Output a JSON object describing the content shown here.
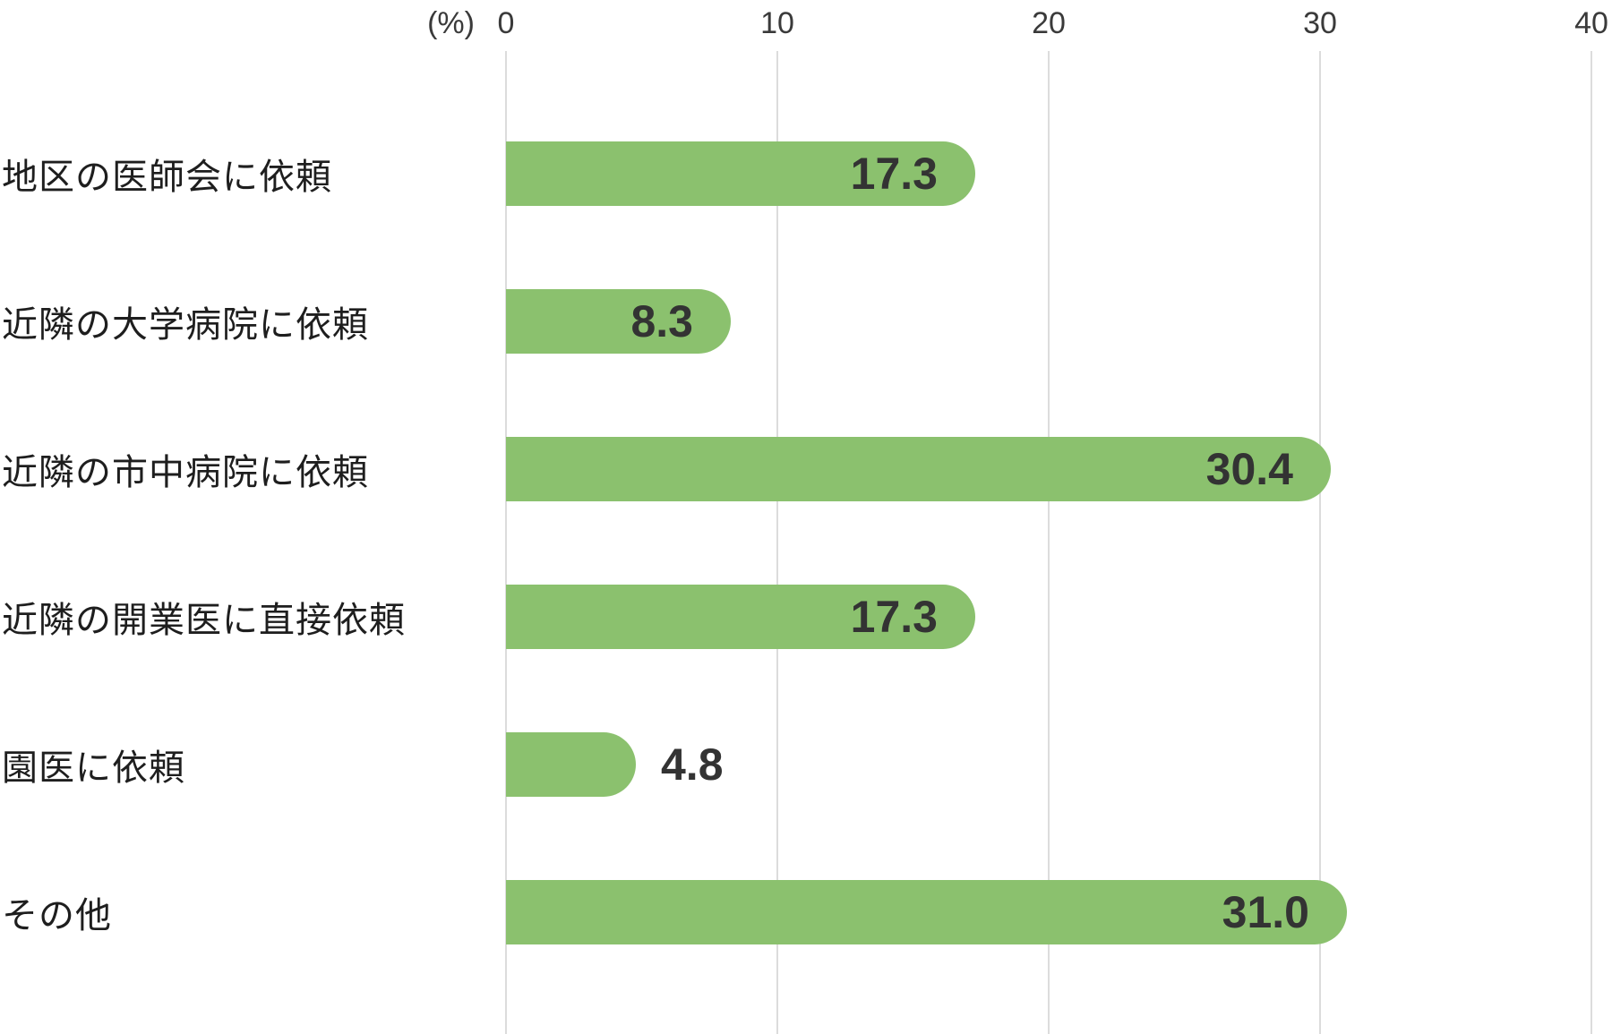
{
  "chart_data": {
    "type": "bar",
    "orientation": "horizontal",
    "unit_label": "(%)",
    "categories": [
      "地区の医師会に依頼",
      "近隣の大学病院に依頼",
      "近隣の市中病院に依頼",
      "近隣の開業医に直接依頼",
      "園医に依頼",
      "その他"
    ],
    "values": [
      17.3,
      8.3,
      30.4,
      17.3,
      4.8,
      31.0
    ],
    "value_labels": [
      "17.3",
      "8.3",
      "30.4",
      "17.3",
      "4.8",
      "31.0"
    ],
    "value_label_placement": [
      "inside",
      "inside",
      "inside",
      "inside",
      "outside",
      "inside"
    ],
    "x_ticks": [
      "0",
      "10",
      "20",
      "30",
      "40"
    ],
    "x_tick_values": [
      0,
      10,
      20,
      30,
      40
    ],
    "xlim": [
      0,
      40
    ],
    "grid": true,
    "legend": false,
    "colors": {
      "bar": "#8BC16E",
      "value_text": "#333333",
      "category_text": "#1E1E1E",
      "tick_text": "#3A3A3A",
      "gridline": "#DCDCDC",
      "background": "#FFFFFF"
    }
  }
}
